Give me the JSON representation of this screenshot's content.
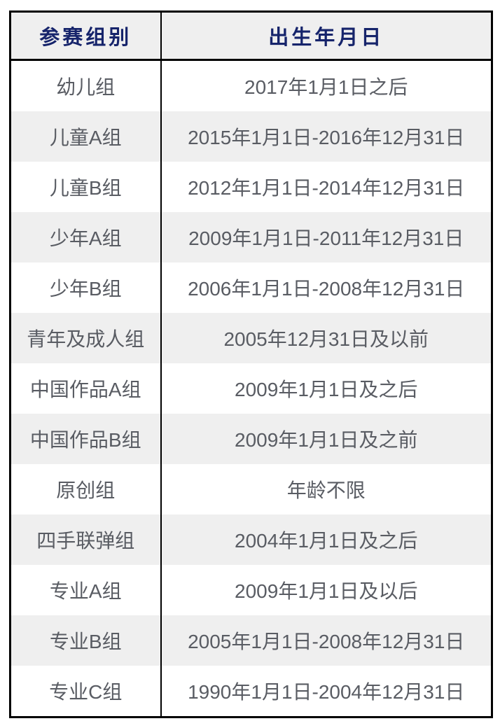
{
  "table": {
    "headers": {
      "group": "参赛组别",
      "birth": "出生年月日"
    },
    "rows": [
      {
        "group": "幼儿组",
        "birth": "2017年1月1日之后"
      },
      {
        "group": "儿童A组",
        "birth": "2015年1月1日-2016年12月31日"
      },
      {
        "group": "儿童B组",
        "birth": "2012年1月1日-2014年12月31日"
      },
      {
        "group": "少年A组",
        "birth": "2009年1月1日-2011年12月31日"
      },
      {
        "group": "少年B组",
        "birth": "2006年1月1日-2008年12月31日"
      },
      {
        "group": "青年及成人组",
        "birth": "2005年12月31日及以前"
      },
      {
        "group": "中国作品A组",
        "birth": "2009年1月1日及之后"
      },
      {
        "group": "中国作品B组",
        "birth": "2009年1月1日及之前"
      },
      {
        "group": "原创组",
        "birth": "年龄不限"
      },
      {
        "group": "四手联弹组",
        "birth": "2004年1月1日及之后"
      },
      {
        "group": "专业A组",
        "birth": "2009年1月1日及以后"
      },
      {
        "group": "专业B组",
        "birth": "2005年1月1日-2008年12月31日"
      },
      {
        "group": "专业C组",
        "birth": "1990年1月1日-2004年12月31日"
      }
    ],
    "colors": {
      "header_text": "#16246b",
      "body_text": "#595c63",
      "stripe_bg": "#efefef",
      "border": "#000000",
      "page_bg": "#ffffff"
    }
  }
}
